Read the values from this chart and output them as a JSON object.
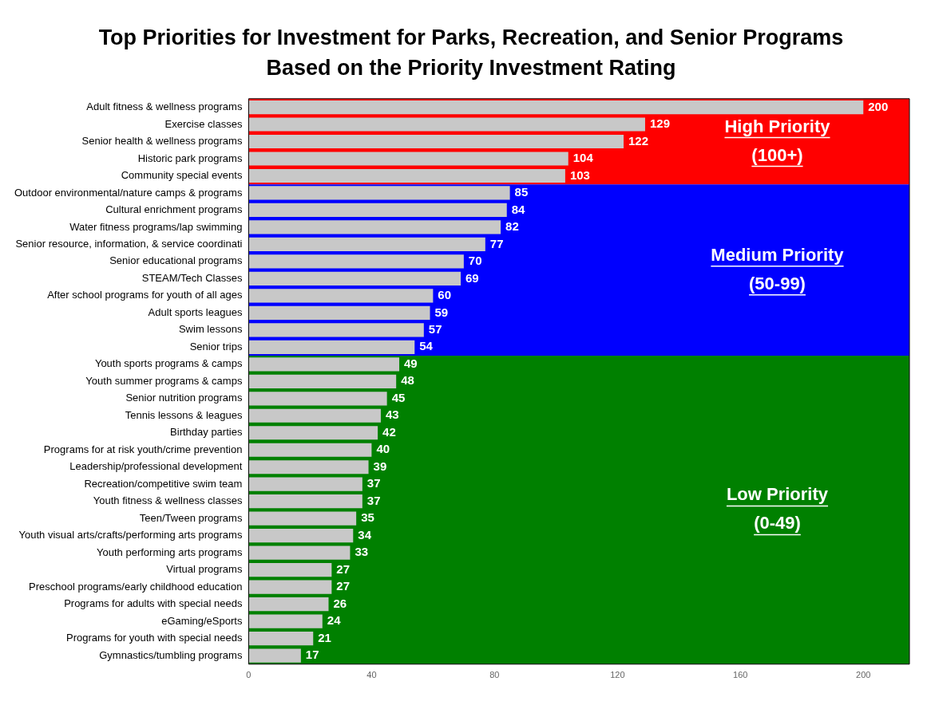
{
  "chart_data": {
    "type": "bar",
    "orientation": "horizontal",
    "title": "Top Priorities for Investment for Parks, Recreation, and Senior Programs Based on the Priority Investment Rating",
    "categories": [
      "Adult fitness & wellness programs",
      "Exercise classes",
      "Senior health & wellness programs",
      "Historic park programs",
      "Community special events",
      "Outdoor environmental/nature camps & programs",
      "Cultural enrichment programs",
      "Water fitness programs/lap swimming",
      "Senior resource, information, & service coordinati",
      "Senior educational programs",
      "STEAM/Tech Classes",
      "After school programs for youth of all ages",
      "Adult sports leagues",
      "Swim lessons",
      "Senior trips",
      "Youth sports programs & camps",
      "Youth summer programs & camps",
      "Senior nutrition programs",
      "Tennis lessons & leagues",
      "Birthday parties",
      "Programs for at risk youth/crime prevention",
      "Leadership/professional development",
      "Recreation/competitive swim team",
      "Youth fitness & wellness classes",
      "Teen/Tween programs",
      "Youth visual arts/crafts/performing arts programs",
      "Youth performing arts programs",
      "Virtual programs",
      "Preschool programs/early childhood education",
      "Programs for adults with special needs",
      "eGaming/eSports",
      "Programs for youth with special needs",
      "Gymnastics/tumbling programs"
    ],
    "values": [
      200,
      129,
      122,
      104,
      103,
      85,
      84,
      82,
      77,
      70,
      69,
      60,
      59,
      57,
      54,
      49,
      48,
      45,
      43,
      42,
      40,
      39,
      37,
      37,
      35,
      34,
      33,
      27,
      27,
      26,
      24,
      21,
      17
    ],
    "color": "#c8c8c8",
    "data_labels": true,
    "xlim": [
      0,
      215
    ],
    "xticks": [
      0,
      40,
      80,
      120,
      160,
      200
    ],
    "bands": [
      {
        "axis": "y",
        "from": "Adult fitness & wellness programs",
        "to": "Community special events",
        "label": "High Priority\n(100+)",
        "color": "#ff0000"
      },
      {
        "axis": "y",
        "from": "Outdoor environmental/nature camps & programs",
        "to": "Senior trips",
        "label": "Medium Priority\n(50-99)",
        "color": "#0000ff"
      },
      {
        "axis": "y",
        "from": "Youth sports programs & camps",
        "to": "Gymnastics/tumbling programs",
        "label": "Low Priority\n(0-49)",
        "color": "#008000"
      }
    ]
  }
}
